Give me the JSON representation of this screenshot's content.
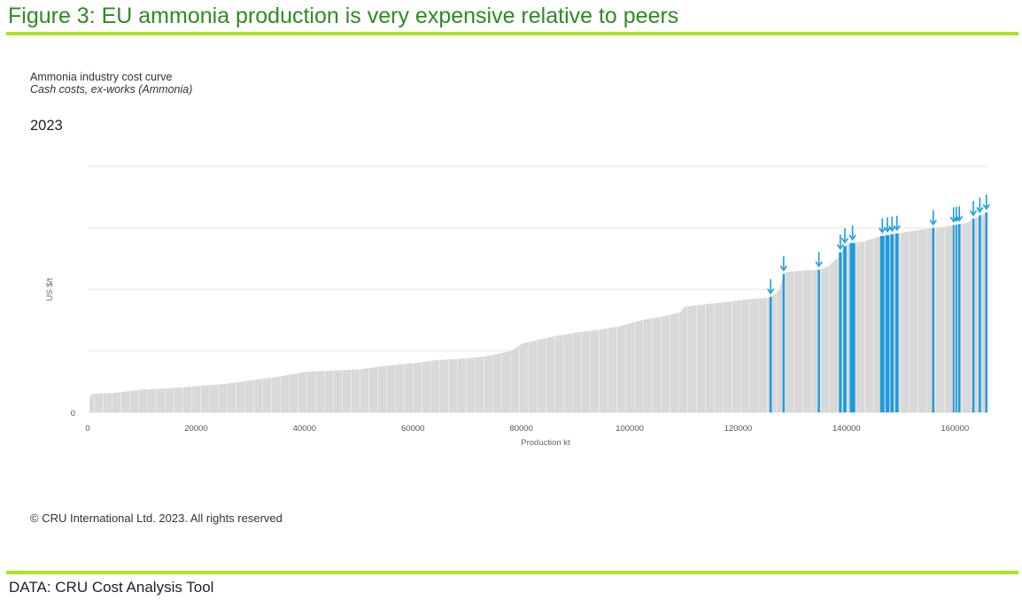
{
  "figure_title": "Figure 3: EU ammonia production is very expensive relative to peers",
  "chart_title": "Ammonia industry cost curve",
  "chart_subtitle": "Cash costs, ex-works (Ammonia)",
  "year_label": "2023",
  "copyright": "© CRU International Ltd. 2023. All rights reserved",
  "source": "DATA: CRU Cost Analysis Tool",
  "colors": {
    "accent_green": "#a8e71d",
    "title_green": "#2e8b22",
    "other": "#d9d9d9",
    "eu": "#1a9de0",
    "grid": "#e6e6e6"
  },
  "chart_data": {
    "type": "bar",
    "subtype": "cost-curve",
    "xlabel": "Production kt",
    "ylabel": "US $/t",
    "xlim": [
      0,
      166000
    ],
    "x_ticks": [
      0,
      20000,
      40000,
      60000,
      80000,
      100000,
      120000,
      140000,
      160000
    ],
    "y_tick_labels": [
      "0"
    ],
    "y_gridlines": 4,
    "y_scale_note": "only the 0 tick is labelled; values below are relative cost levels",
    "curve_points": [
      [
        0,
        0.055
      ],
      [
        600,
        0.075
      ],
      [
        5000,
        0.08
      ],
      [
        10000,
        0.093
      ],
      [
        15000,
        0.098
      ],
      [
        20000,
        0.107
      ],
      [
        25000,
        0.115
      ],
      [
        30000,
        0.13
      ],
      [
        35000,
        0.145
      ],
      [
        40000,
        0.165
      ],
      [
        45000,
        0.17
      ],
      [
        50000,
        0.175
      ],
      [
        55000,
        0.19
      ],
      [
        60000,
        0.2
      ],
      [
        64000,
        0.212
      ],
      [
        70000,
        0.22
      ],
      [
        74000,
        0.23
      ],
      [
        78000,
        0.25
      ],
      [
        80000,
        0.28
      ],
      [
        83000,
        0.295
      ],
      [
        86000,
        0.31
      ],
      [
        90000,
        0.325
      ],
      [
        94000,
        0.335
      ],
      [
        98000,
        0.35
      ],
      [
        102000,
        0.375
      ],
      [
        106000,
        0.39
      ],
      [
        109000,
        0.405
      ],
      [
        110000,
        0.43
      ],
      [
        114000,
        0.44
      ],
      [
        118000,
        0.45
      ],
      [
        122000,
        0.46
      ],
      [
        125000,
        0.465
      ],
      [
        126000,
        0.47
      ],
      [
        127500,
        0.5
      ],
      [
        128500,
        0.57
      ],
      [
        132000,
        0.577
      ],
      [
        135000,
        0.58
      ],
      [
        136500,
        0.595
      ],
      [
        138000,
        0.625
      ],
      [
        140000,
        0.685
      ],
      [
        143000,
        0.695
      ],
      [
        146000,
        0.715
      ],
      [
        150000,
        0.73
      ],
      [
        154000,
        0.745
      ],
      [
        158000,
        0.755
      ],
      [
        162000,
        0.77
      ],
      [
        164000,
        0.795
      ],
      [
        166000,
        0.815
      ]
    ],
    "eu_segments": [
      {
        "x_start": 125800,
        "x_end": 126200,
        "arrow": true
      },
      {
        "x_start": 128200,
        "x_end": 128600,
        "arrow": true
      },
      {
        "x_start": 134700,
        "x_end": 135100,
        "arrow": true
      },
      {
        "x_start": 138600,
        "x_end": 139100,
        "arrow": true
      },
      {
        "x_start": 139400,
        "x_end": 140000,
        "arrow": true
      },
      {
        "x_start": 140600,
        "x_end": 141600,
        "arrow": true
      },
      {
        "x_start": 146200,
        "x_end": 147000,
        "arrow": true
      },
      {
        "x_start": 147200,
        "x_end": 147900,
        "arrow": true
      },
      {
        "x_start": 148100,
        "x_end": 148700,
        "arrow": true
      },
      {
        "x_start": 149000,
        "x_end": 149600,
        "arrow": true
      },
      {
        "x_start": 155800,
        "x_end": 156200,
        "arrow": true
      },
      {
        "x_start": 159600,
        "x_end": 159900,
        "arrow": true
      },
      {
        "x_start": 160100,
        "x_end": 160400,
        "arrow": true
      },
      {
        "x_start": 160600,
        "x_end": 161000,
        "arrow": true
      },
      {
        "x_start": 163200,
        "x_end": 163600,
        "arrow": true
      },
      {
        "x_start": 164400,
        "x_end": 164800,
        "arrow": true
      },
      {
        "x_start": 165600,
        "x_end": 166000,
        "arrow": true
      }
    ]
  }
}
